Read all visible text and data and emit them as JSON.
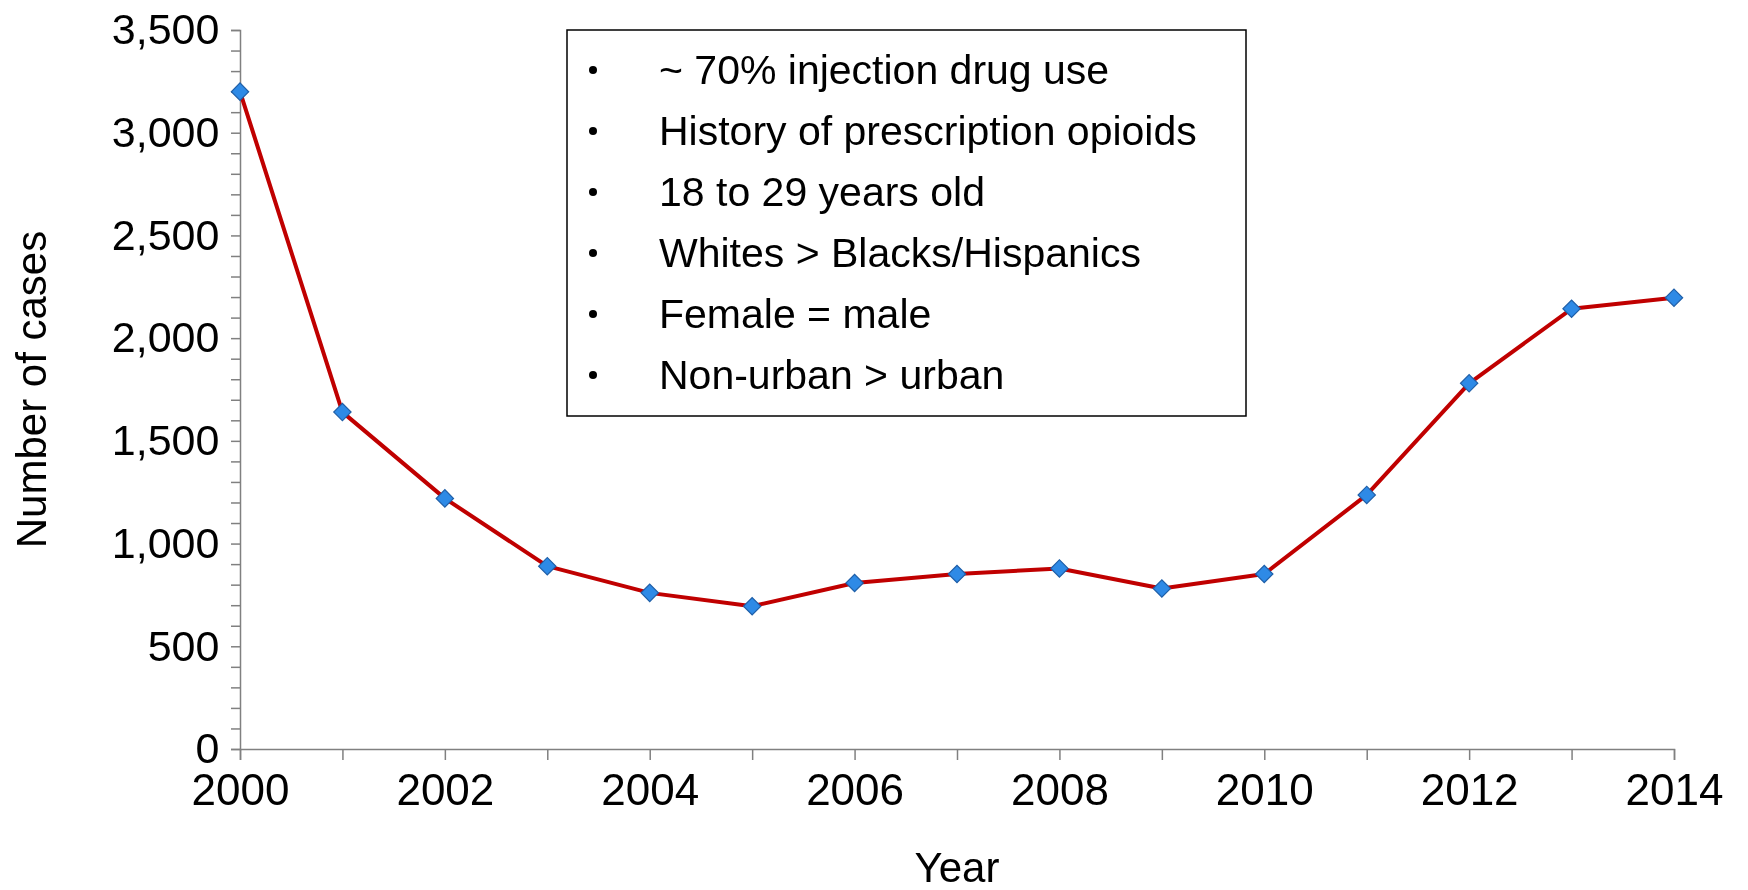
{
  "chart_data": {
    "type": "line",
    "xlabel": "Year",
    "ylabel": "Number of cases",
    "x": [
      2000,
      2001,
      2002,
      2003,
      2004,
      2005,
      2006,
      2007,
      2008,
      2009,
      2010,
      2011,
      2012,
      2013,
      2014
    ],
    "series": [
      {
        "color": "#c00000",
        "values": [
          3200,
          1640,
          1220,
          890,
          760,
          695,
          808,
          852,
          879,
          781,
          852,
          1237,
          1780,
          2143,
          2197
        ]
      }
    ],
    "xlim": [
      2000,
      2014
    ],
    "xticks": [
      2000,
      {
        "value": 2001,
        "label": null
      },
      2002,
      {
        "value": 2003,
        "label": null
      },
      2004,
      {
        "value": 2005,
        "label": null
      },
      2006,
      {
        "value": 2007,
        "label": null
      },
      2008,
      {
        "value": 2009,
        "label": null
      },
      2010,
      {
        "value": 2011,
        "label": null
      },
      2012,
      {
        "value": 2013,
        "label": null
      },
      2014
    ],
    "ylim": [
      0,
      3500
    ],
    "yticks": [
      {
        "value": 0,
        "label": "0"
      },
      {
        "value": 100,
        "label": null
      },
      {
        "value": 200,
        "label": null
      },
      {
        "value": 300,
        "label": null
      },
      {
        "value": 400,
        "label": null
      },
      {
        "value": 500,
        "label": "500"
      },
      {
        "value": 600,
        "label": null
      },
      {
        "value": 700,
        "label": null
      },
      {
        "value": 800,
        "label": null
      },
      {
        "value": 900,
        "label": null
      },
      {
        "value": 1000,
        "label": "1,000"
      },
      {
        "value": 1100,
        "label": null
      },
      {
        "value": 1200,
        "label": null
      },
      {
        "value": 1300,
        "label": null
      },
      {
        "value": 1400,
        "label": null
      },
      {
        "value": 1500,
        "label": "1,500"
      },
      {
        "value": 1600,
        "label": null
      },
      {
        "value": 1700,
        "label": null
      },
      {
        "value": 1800,
        "label": null
      },
      {
        "value": 1900,
        "label": null
      },
      {
        "value": 2000,
        "label": "2,000"
      },
      {
        "value": 2100,
        "label": null
      },
      {
        "value": 2200,
        "label": null
      },
      {
        "value": 2300,
        "label": null
      },
      {
        "value": 2400,
        "label": null
      },
      {
        "value": 2500,
        "label": "2,500"
      },
      {
        "value": 2600,
        "label": null
      },
      {
        "value": 2700,
        "label": null
      },
      {
        "value": 2800,
        "label": null
      },
      {
        "value": 2900,
        "label": null
      },
      {
        "value": 3000,
        "label": "3,000"
      },
      {
        "value": 3100,
        "label": null
      },
      {
        "value": 3200,
        "label": null
      },
      {
        "value": 3300,
        "label": null
      },
      {
        "value": 3400,
        "label": null
      },
      {
        "value": 3500,
        "label": "3,500"
      }
    ],
    "marker": "diamond",
    "grid": false,
    "annotations": [
      "~ 70% injection drug use",
      "History of prescription opioids",
      "18 to 29 years old",
      "Whites > Blacks/Hispanics",
      "Female = male",
      "Non-urban > urban"
    ]
  }
}
